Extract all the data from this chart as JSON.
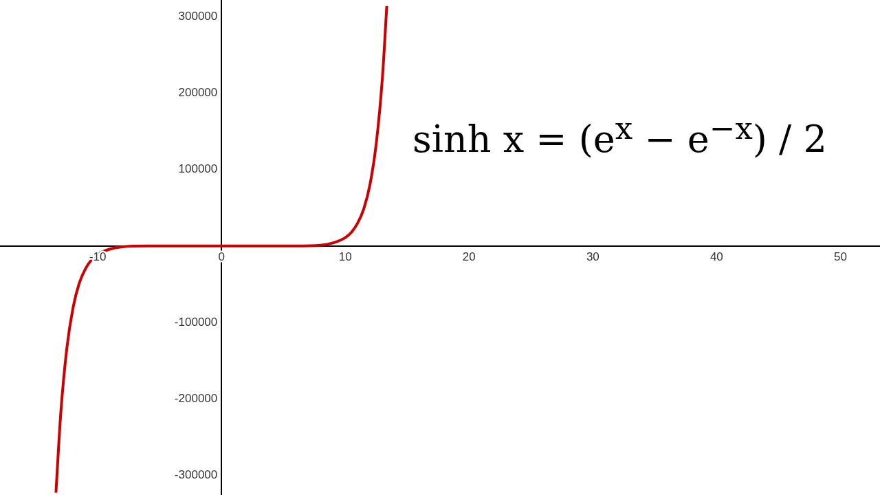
{
  "chart_data": {
    "type": "line",
    "annotations": [
      "sinh x = (e$^{x}$ − e$^{−x}$) / 2"
    ],
    "x": [
      -13.38,
      -13,
      -12.5,
      -12,
      -11.5,
      -11,
      -10.5,
      -10,
      -9,
      -8,
      -6,
      -4,
      0,
      4,
      6,
      8,
      9,
      10,
      10.5,
      11,
      11.5,
      12,
      12.5,
      13,
      13.35
    ],
    "series": [
      {
        "color": "#cc0000",
        "values": [
          -323000,
          -221000,
          -134000,
          -81000,
          -49000,
          -30000,
          -18000,
          -11000,
          -4000,
          -1000,
          0,
          0,
          0,
          0,
          0,
          1000,
          4000,
          11000,
          18000,
          30000,
          49000,
          81000,
          134000,
          221000,
          314000
        ]
      }
    ],
    "xlim": [
      -17.9,
      53.2
    ],
    "ylim": [
      -326000,
      322000
    ],
    "xticks": [
      -10,
      0,
      10,
      20,
      30,
      40,
      50
    ],
    "yticks": [
      -300000,
      -200000,
      -100000,
      100000,
      200000,
      300000
    ],
    "grid": false,
    "legend": false,
    "marker": "none",
    "line_style": "solid"
  }
}
